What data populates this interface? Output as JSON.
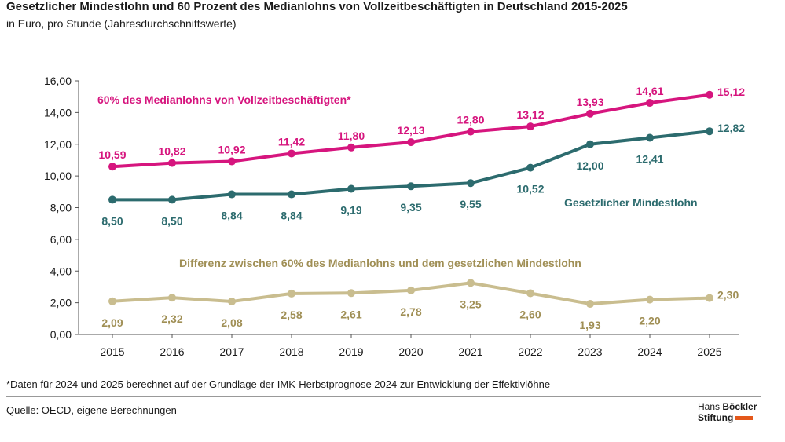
{
  "header": {
    "title": "Gesetzlicher Mindestlohn und 60 Prozent des Medianlohns von Vollzeitbeschäftigten in Deutschland 2015-2025",
    "subtitle": "in Euro, pro Stunde (Jahresdurchschnittswerte)"
  },
  "footer": {
    "footnote": "*Daten für 2024 und 2025 berechnet auf der Grundlage der IMK-Herbstprognose 2024 zur Entwicklung der Effektivlöhne",
    "source": "Quelle: OECD, eigene Berechnungen",
    "logo_line1_a": "Hans ",
    "logo_line1_b": "Böckler",
    "logo_line2": "Stiftung"
  },
  "chart_data": {
    "type": "line",
    "x": [
      "2015",
      "2016",
      "2017",
      "2018",
      "2019",
      "2020",
      "2021",
      "2022",
      "2023",
      "2024",
      "2025"
    ],
    "ylim": [
      0,
      16
    ],
    "yticks": [
      0,
      2,
      4,
      6,
      8,
      10,
      12,
      14,
      16
    ],
    "ytick_labels": [
      "0,00",
      "2,00",
      "4,00",
      "6,00",
      "8,00",
      "10,00",
      "12,00",
      "14,00",
      "16,00"
    ],
    "grid": false,
    "series": [
      {
        "name": "60% des Medianlohns von Vollzeitbeschäftigten*",
        "color": "#d6157e",
        "values": [
          10.59,
          10.82,
          10.92,
          11.42,
          11.8,
          12.13,
          12.8,
          13.12,
          13.93,
          14.61,
          15.12
        ],
        "labels": [
          "10,59",
          "10,82",
          "10,92",
          "11,42",
          "11,80",
          "12,13",
          "12,80",
          "13,12",
          "13,93",
          "14,61",
          "15,12"
        ],
        "label_pos": [
          "above",
          "above",
          "above",
          "above",
          "above",
          "above",
          "above",
          "above",
          "above",
          "above",
          "right"
        ]
      },
      {
        "name": "Gesetzlicher Mindestlohn",
        "color": "#2c6b6e",
        "values": [
          8.5,
          8.5,
          8.84,
          8.84,
          9.19,
          9.35,
          9.55,
          10.52,
          12.0,
          12.41,
          12.82
        ],
        "labels": [
          "8,50",
          "8,50",
          "8,84",
          "8,84",
          "9,19",
          "9,35",
          "9,55",
          "10,52",
          "12,00",
          "12,41",
          "12,82"
        ],
        "label_pos": [
          "below",
          "below",
          "below",
          "below",
          "below",
          "below",
          "below",
          "below",
          "below",
          "below",
          "right"
        ]
      },
      {
        "name": "Differenz zwischen 60% des Medianlohns und dem gesetzlichen Mindestlohn",
        "color": "#c9bd8f",
        "label_color": "#a08f55",
        "values": [
          2.09,
          2.32,
          2.08,
          2.58,
          2.61,
          2.78,
          3.25,
          2.6,
          1.93,
          2.2,
          2.3
        ],
        "labels": [
          "2,09",
          "2,32",
          "2,08",
          "2,58",
          "2,61",
          "2,78",
          "3,25",
          "2,60",
          "1,93",
          "2,20",
          "2,30"
        ],
        "label_pos": [
          "below",
          "below",
          "below",
          "below",
          "below",
          "below",
          "below",
          "below",
          "below",
          "below",
          "right"
        ]
      }
    ]
  }
}
